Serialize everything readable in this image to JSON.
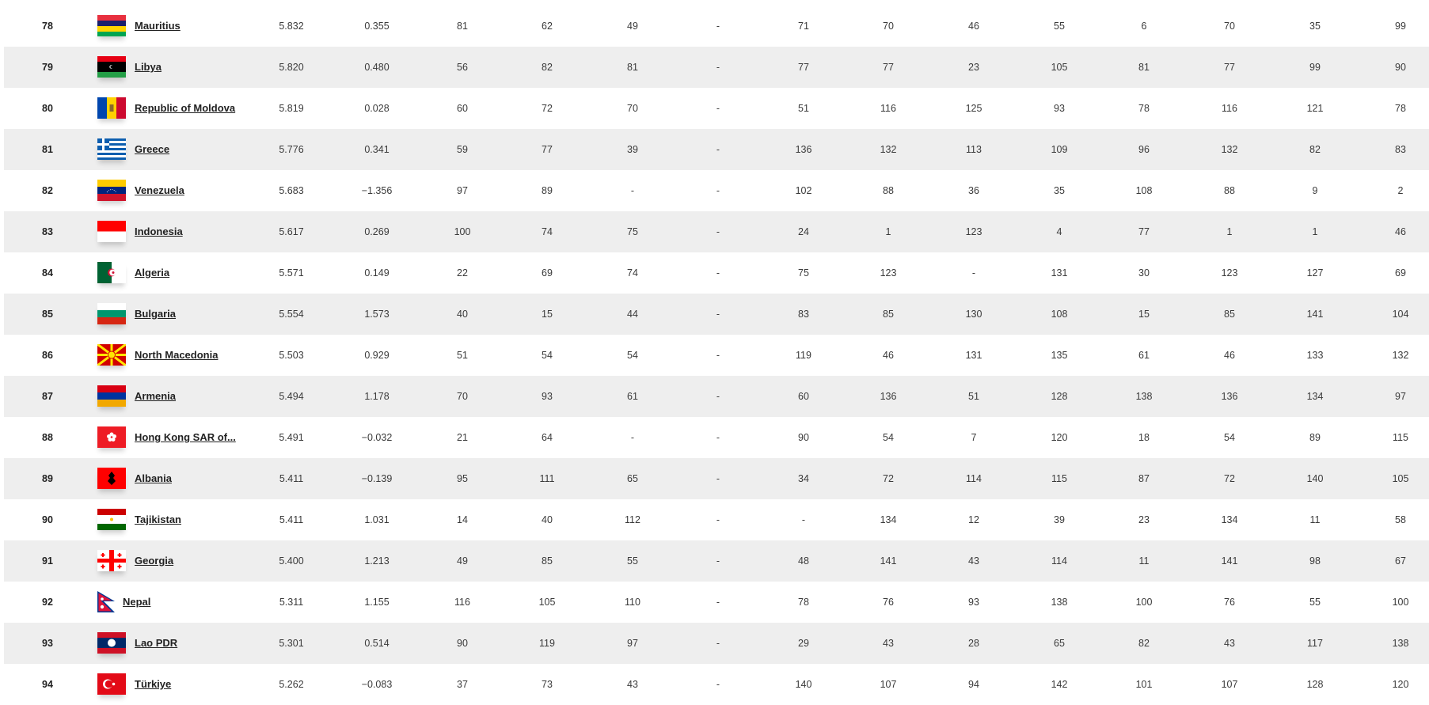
{
  "table": {
    "rows": [
      {
        "rank": "78",
        "flag": "mauritius-flag",
        "country": "Mauritius",
        "score": "5.832",
        "change": "0.355",
        "values": [
          "81",
          "62",
          "49",
          "-",
          "71",
          "70",
          "46",
          "55",
          "6",
          "70",
          "35",
          "99"
        ]
      },
      {
        "rank": "79",
        "flag": "libya-flag",
        "country": "Libya",
        "score": "5.820",
        "change": "0.480",
        "values": [
          "56",
          "82",
          "81",
          "-",
          "77",
          "77",
          "23",
          "105",
          "81",
          "77",
          "99",
          "90"
        ]
      },
      {
        "rank": "80",
        "flag": "moldova-flag",
        "country": "Republic of Moldova",
        "score": "5.819",
        "change": "0.028",
        "values": [
          "60",
          "72",
          "70",
          "-",
          "51",
          "116",
          "125",
          "93",
          "78",
          "116",
          "121",
          "78"
        ]
      },
      {
        "rank": "81",
        "flag": "greece-flag",
        "country": "Greece",
        "score": "5.776",
        "change": "0.341",
        "values": [
          "59",
          "77",
          "39",
          "-",
          "136",
          "132",
          "113",
          "109",
          "96",
          "132",
          "82",
          "83"
        ]
      },
      {
        "rank": "82",
        "flag": "venezuela-flag",
        "country": "Venezuela",
        "score": "5.683",
        "change": "−1.356",
        "values": [
          "97",
          "89",
          "-",
          "-",
          "102",
          "88",
          "36",
          "35",
          "108",
          "88",
          "9",
          "2"
        ]
      },
      {
        "rank": "83",
        "flag": "indonesia-flag",
        "country": "Indonesia",
        "score": "5.617",
        "change": "0.269",
        "values": [
          "100",
          "74",
          "75",
          "-",
          "24",
          "1",
          "123",
          "4",
          "77",
          "1",
          "1",
          "46"
        ]
      },
      {
        "rank": "84",
        "flag": "algeria-flag",
        "country": "Algeria",
        "score": "5.571",
        "change": "0.149",
        "values": [
          "22",
          "69",
          "74",
          "-",
          "75",
          "123",
          "-",
          "131",
          "30",
          "123",
          "127",
          "69"
        ]
      },
      {
        "rank": "85",
        "flag": "bulgaria-flag",
        "country": "Bulgaria",
        "score": "5.554",
        "change": "1.573",
        "values": [
          "40",
          "15",
          "44",
          "-",
          "83",
          "85",
          "130",
          "108",
          "15",
          "85",
          "141",
          "104"
        ]
      },
      {
        "rank": "86",
        "flag": "north-macedonia-flag",
        "country": "North Macedonia",
        "score": "5.503",
        "change": "0.929",
        "values": [
          "51",
          "54",
          "54",
          "-",
          "119",
          "46",
          "131",
          "135",
          "61",
          "46",
          "133",
          "132"
        ]
      },
      {
        "rank": "87",
        "flag": "armenia-flag",
        "country": "Armenia",
        "score": "5.494",
        "change": "1.178",
        "values": [
          "70",
          "93",
          "61",
          "-",
          "60",
          "136",
          "51",
          "128",
          "138",
          "136",
          "134",
          "97"
        ]
      },
      {
        "rank": "88",
        "flag": "hong-kong-flag",
        "country": "Hong Kong SAR of...",
        "score": "5.491",
        "change": "−0.032",
        "values": [
          "21",
          "64",
          "-",
          "-",
          "90",
          "54",
          "7",
          "120",
          "18",
          "54",
          "89",
          "115"
        ]
      },
      {
        "rank": "89",
        "flag": "albania-flag",
        "country": "Albania",
        "score": "5.411",
        "change": "−0.139",
        "values": [
          "95",
          "111",
          "65",
          "-",
          "34",
          "72",
          "114",
          "115",
          "87",
          "72",
          "140",
          "105"
        ]
      },
      {
        "rank": "90",
        "flag": "tajikistan-flag",
        "country": "Tajikistan",
        "score": "5.411",
        "change": "1.031",
        "values": [
          "14",
          "40",
          "112",
          "-",
          "-",
          "134",
          "12",
          "39",
          "23",
          "134",
          "11",
          "58"
        ]
      },
      {
        "rank": "91",
        "flag": "georgia-flag",
        "country": "Georgia",
        "score": "5.400",
        "change": "1.213",
        "values": [
          "49",
          "85",
          "55",
          "-",
          "48",
          "141",
          "43",
          "114",
          "11",
          "141",
          "98",
          "67"
        ]
      },
      {
        "rank": "92",
        "flag": "nepal-flag",
        "country": "Nepal",
        "score": "5.311",
        "change": "1.155",
        "values": [
          "116",
          "105",
          "110",
          "-",
          "78",
          "76",
          "93",
          "138",
          "100",
          "76",
          "55",
          "100"
        ]
      },
      {
        "rank": "93",
        "flag": "laos-flag",
        "country": "Lao PDR",
        "score": "5.301",
        "change": "0.514",
        "values": [
          "90",
          "119",
          "97",
          "-",
          "29",
          "43",
          "28",
          "65",
          "82",
          "43",
          "117",
          "138"
        ]
      },
      {
        "rank": "94",
        "flag": "turkiye-flag",
        "country": "Türkiye",
        "score": "5.262",
        "change": "−0.083",
        "values": [
          "37",
          "73",
          "43",
          "-",
          "140",
          "107",
          "94",
          "142",
          "101",
          "107",
          "128",
          "120"
        ]
      }
    ]
  },
  "colors": {
    "row_alt": "#eeeeee",
    "text": "#333333",
    "link": "#222222"
  }
}
